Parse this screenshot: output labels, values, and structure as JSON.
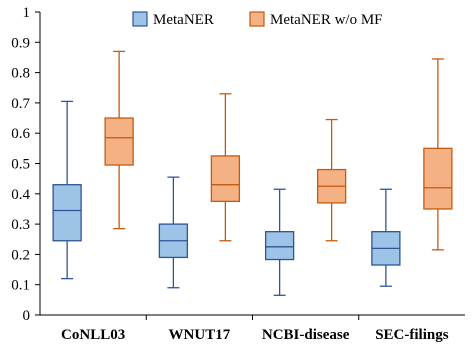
{
  "chart_data": {
    "type": "boxplot",
    "categories": [
      "CoNLL03",
      "WNUT17",
      "NCBI-disease",
      "SEC-filings"
    ],
    "ylim": [
      0,
      1
    ],
    "yticks": [
      "0",
      "0.1",
      "0.2",
      "0.3",
      "0.4",
      "0.5",
      "0.6",
      "0.7",
      "0.8",
      "0.9",
      "1"
    ],
    "legend_position": "top-center",
    "grid": false,
    "series": [
      {
        "name": "MetaNER",
        "fill": "#9dc3e6",
        "stroke": "#2f5597",
        "boxes": [
          {
            "min": 0.12,
            "q1": 0.245,
            "median": 0.345,
            "q3": 0.43,
            "max": 0.705
          },
          {
            "min": 0.09,
            "q1": 0.19,
            "median": 0.245,
            "q3": 0.3,
            "max": 0.455
          },
          {
            "min": 0.065,
            "q1": 0.183,
            "median": 0.225,
            "q3": 0.275,
            "max": 0.415
          },
          {
            "min": 0.095,
            "q1": 0.165,
            "median": 0.22,
            "q3": 0.275,
            "max": 0.415
          }
        ]
      },
      {
        "name": "MetaNER w/o MF",
        "fill": "#f4b183",
        "stroke": "#c55a11",
        "boxes": [
          {
            "min": 0.285,
            "q1": 0.495,
            "median": 0.585,
            "q3": 0.65,
            "max": 0.87
          },
          {
            "min": 0.245,
            "q1": 0.375,
            "median": 0.43,
            "q3": 0.525,
            "max": 0.73
          },
          {
            "min": 0.245,
            "q1": 0.37,
            "median": 0.425,
            "q3": 0.48,
            "max": 0.645
          },
          {
            "min": 0.215,
            "q1": 0.35,
            "median": 0.42,
            "q3": 0.55,
            "max": 0.845
          }
        ]
      }
    ]
  }
}
